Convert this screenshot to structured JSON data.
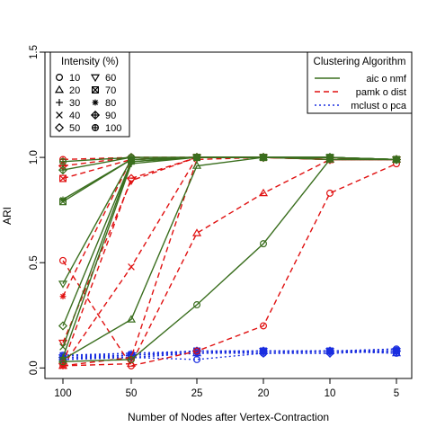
{
  "chart_data": {
    "type": "line",
    "xlabel": "Number of Nodes after Vertex-Contraction",
    "ylabel": "ARI",
    "x_categories": [
      "100",
      "50",
      "25",
      "20",
      "10",
      "5"
    ],
    "y_ticks": [
      "0.0",
      "0.5",
      "1.0",
      "1.5"
    ],
    "ylim": [
      -0.05,
      1.5
    ],
    "grid": false,
    "intensity_legend": {
      "title": "Intensity (%)",
      "placement": "top-left",
      "items": [
        {
          "label": "10",
          "symbol": "circle"
        },
        {
          "label": "20",
          "symbol": "triangle"
        },
        {
          "label": "30",
          "symbol": "plus"
        },
        {
          "label": "40",
          "symbol": "cross"
        },
        {
          "label": "50",
          "symbol": "diamond"
        },
        {
          "label": "60",
          "symbol": "triangle-down"
        },
        {
          "label": "70",
          "symbol": "square-x"
        },
        {
          "label": "80",
          "symbol": "asterisk"
        },
        {
          "label": "90",
          "symbol": "diamond-plus"
        },
        {
          "label": "100",
          "symbol": "circle-plus"
        }
      ]
    },
    "algorithm_legend": {
      "title": "Clustering Algorithm",
      "placement": "top-right",
      "items": [
        {
          "label": "aic o nmf",
          "color": "#3a6e1e",
          "dash": "solid"
        },
        {
          "label": "pamk o dist",
          "color": "#e01010",
          "dash": "dashed"
        },
        {
          "label": "mclust o pca",
          "color": "#1a2ee0",
          "dash": "dotted"
        }
      ]
    },
    "series": [
      {
        "algorithm": "aic o nmf",
        "intensity": "10",
        "values": [
          0.03,
          0.04,
          0.3,
          0.59,
          0.99,
          0.99
        ]
      },
      {
        "algorithm": "aic o nmf",
        "intensity": "20",
        "values": [
          0.04,
          0.23,
          0.96,
          1.0,
          0.99,
          0.99
        ]
      },
      {
        "algorithm": "aic o nmf",
        "intensity": "30",
        "values": [
          0.05,
          0.97,
          1.0,
          1.0,
          1.0,
          0.99
        ]
      },
      {
        "algorithm": "aic o nmf",
        "intensity": "40",
        "values": [
          0.1,
          0.98,
          1.0,
          1.0,
          1.0,
          0.99
        ]
      },
      {
        "algorithm": "aic o nmf",
        "intensity": "50",
        "values": [
          0.2,
          0.98,
          1.0,
          1.0,
          1.0,
          0.99
        ]
      },
      {
        "algorithm": "aic o nmf",
        "intensity": "60",
        "values": [
          0.4,
          0.99,
          1.0,
          1.0,
          1.0,
          0.99
        ]
      },
      {
        "algorithm": "aic o nmf",
        "intensity": "70",
        "values": [
          0.79,
          0.99,
          1.0,
          1.0,
          1.0,
          0.99
        ]
      },
      {
        "algorithm": "aic o nmf",
        "intensity": "80",
        "values": [
          0.8,
          0.99,
          1.0,
          1.0,
          1.0,
          0.99
        ]
      },
      {
        "algorithm": "aic o nmf",
        "intensity": "90",
        "values": [
          0.94,
          1.0,
          1.0,
          1.0,
          1.0,
          0.99
        ]
      },
      {
        "algorithm": "aic o nmf",
        "intensity": "100",
        "values": [
          0.98,
          1.0,
          1.0,
          1.0,
          1.0,
          0.99
        ]
      },
      {
        "algorithm": "pamk o dist",
        "intensity": "10",
        "values": [
          0.51,
          0.01,
          0.08,
          0.2,
          0.83,
          0.97
        ]
      },
      {
        "algorithm": "pamk o dist",
        "intensity": "20",
        "values": [
          0.01,
          0.02,
          0.64,
          0.83,
          0.99,
          0.99
        ]
      },
      {
        "algorithm": "pamk o dist",
        "intensity": "30",
        "values": [
          0.01,
          0.05,
          0.99,
          1.0,
          0.99,
          0.99
        ]
      },
      {
        "algorithm": "pamk o dist",
        "intensity": "40",
        "values": [
          0.01,
          0.48,
          1.0,
          1.0,
          0.99,
          0.99
        ]
      },
      {
        "algorithm": "pamk o dist",
        "intensity": "50",
        "values": [
          0.02,
          0.9,
          1.0,
          1.0,
          0.99,
          0.99
        ]
      },
      {
        "algorithm": "pamk o dist",
        "intensity": "60",
        "values": [
          0.12,
          0.89,
          1.0,
          1.0,
          0.99,
          0.99
        ]
      },
      {
        "algorithm": "pamk o dist",
        "intensity": "70",
        "values": [
          0.9,
          0.99,
          1.0,
          1.0,
          0.99,
          0.99
        ]
      },
      {
        "algorithm": "pamk o dist",
        "intensity": "80",
        "values": [
          0.34,
          0.99,
          1.0,
          1.0,
          0.99,
          0.99
        ]
      },
      {
        "algorithm": "pamk o dist",
        "intensity": "90",
        "values": [
          0.96,
          1.0,
          1.0,
          1.0,
          0.99,
          0.99
        ]
      },
      {
        "algorithm": "pamk o dist",
        "intensity": "100",
        "values": [
          0.99,
          1.0,
          1.0,
          1.0,
          0.99,
          0.99
        ]
      },
      {
        "algorithm": "mclust o pca",
        "intensity": "10",
        "values": [
          0.04,
          0.05,
          0.04,
          0.07,
          0.08,
          0.07
        ]
      },
      {
        "algorithm": "mclust o pca",
        "intensity": "20",
        "values": [
          0.05,
          0.06,
          0.07,
          0.08,
          0.08,
          0.07
        ]
      },
      {
        "algorithm": "mclust o pca",
        "intensity": "30",
        "values": [
          0.04,
          0.05,
          0.07,
          0.07,
          0.07,
          0.08
        ]
      },
      {
        "algorithm": "mclust o pca",
        "intensity": "40",
        "values": [
          0.06,
          0.06,
          0.08,
          0.08,
          0.08,
          0.08
        ]
      },
      {
        "algorithm": "mclust o pca",
        "intensity": "50",
        "values": [
          0.05,
          0.06,
          0.08,
          0.07,
          0.07,
          0.08
        ]
      },
      {
        "algorithm": "mclust o pca",
        "intensity": "60",
        "values": [
          0.05,
          0.05,
          0.07,
          0.08,
          0.08,
          0.08
        ]
      },
      {
        "algorithm": "mclust o pca",
        "intensity": "70",
        "values": [
          0.04,
          0.06,
          0.08,
          0.08,
          0.08,
          0.08
        ]
      },
      {
        "algorithm": "mclust o pca",
        "intensity": "80",
        "values": [
          0.06,
          0.07,
          0.08,
          0.08,
          0.08,
          0.09
        ]
      },
      {
        "algorithm": "mclust o pca",
        "intensity": "90",
        "values": [
          0.05,
          0.06,
          0.08,
          0.08,
          0.08,
          0.08
        ]
      },
      {
        "algorithm": "mclust o pca",
        "intensity": "100",
        "values": [
          0.06,
          0.06,
          0.08,
          0.08,
          0.08,
          0.09
        ]
      }
    ]
  }
}
